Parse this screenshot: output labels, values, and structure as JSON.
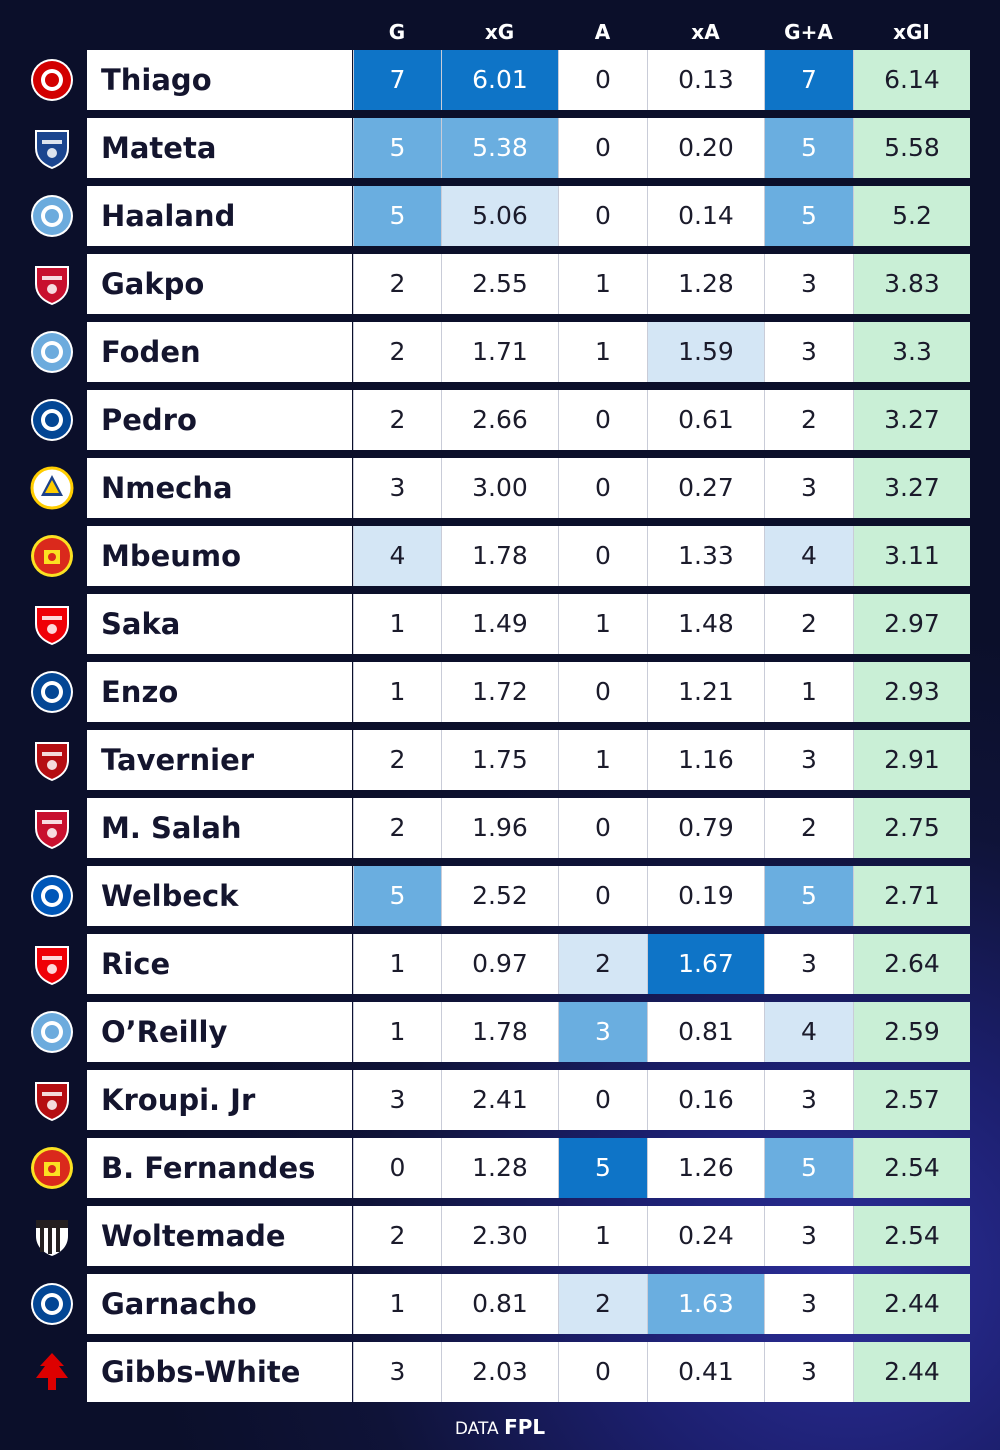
{
  "header": {
    "g": "G",
    "xg": "xG",
    "a": "A",
    "xa": "xA",
    "ga": "G+A",
    "xgi": "xGI"
  },
  "players": [
    {
      "name": "Thiago",
      "club": "brentford",
      "g": "7",
      "xg": "6.01",
      "a": "0",
      "xa": "0.13",
      "ga": "7",
      "xgi": "6.14",
      "lv": {
        "g": 3,
        "xg": 3,
        "a": 0,
        "xa": 0,
        "ga": 3
      }
    },
    {
      "name": "Mateta",
      "club": "crystal-palace",
      "g": "5",
      "xg": "5.38",
      "a": "0",
      "xa": "0.20",
      "ga": "5",
      "xgi": "5.58",
      "lv": {
        "g": 2,
        "xg": 2,
        "a": 0,
        "xa": 0,
        "ga": 2
      }
    },
    {
      "name": "Haaland",
      "club": "manchester-city",
      "g": "5",
      "xg": "5.06",
      "a": "0",
      "xa": "0.14",
      "ga": "5",
      "xgi": "5.2",
      "lv": {
        "g": 2,
        "xg": 1,
        "a": 0,
        "xa": 0,
        "ga": 2
      }
    },
    {
      "name": "Gakpo",
      "club": "liverpool",
      "g": "2",
      "xg": "2.55",
      "a": "1",
      "xa": "1.28",
      "ga": "3",
      "xgi": "3.83",
      "lv": {
        "g": 0,
        "xg": 0,
        "a": 0,
        "xa": 0,
        "ga": 0
      }
    },
    {
      "name": "Foden",
      "club": "manchester-city",
      "g": "2",
      "xg": "1.71",
      "a": "1",
      "xa": "1.59",
      "ga": "3",
      "xgi": "3.3",
      "lv": {
        "g": 0,
        "xg": 0,
        "a": 0,
        "xa": 1,
        "ga": 0
      }
    },
    {
      "name": "Pedro",
      "club": "chelsea",
      "g": "2",
      "xg": "2.66",
      "a": "0",
      "xa": "0.61",
      "ga": "2",
      "xgi": "3.27",
      "lv": {
        "g": 0,
        "xg": 0,
        "a": 0,
        "xa": 0,
        "ga": 0
      }
    },
    {
      "name": "Nmecha",
      "club": "leeds",
      "g": "3",
      "xg": "3.00",
      "a": "0",
      "xa": "0.27",
      "ga": "3",
      "xgi": "3.27",
      "lv": {
        "g": 0,
        "xg": 0,
        "a": 0,
        "xa": 0,
        "ga": 0
      }
    },
    {
      "name": "Mbeumo",
      "club": "manchester-united",
      "g": "4",
      "xg": "1.78",
      "a": "0",
      "xa": "1.33",
      "ga": "4",
      "xgi": "3.11",
      "lv": {
        "g": 1,
        "xg": 0,
        "a": 0,
        "xa": 0,
        "ga": 1
      }
    },
    {
      "name": "Saka",
      "club": "arsenal",
      "g": "1",
      "xg": "1.49",
      "a": "1",
      "xa": "1.48",
      "ga": "2",
      "xgi": "2.97",
      "lv": {
        "g": 0,
        "xg": 0,
        "a": 0,
        "xa": 0,
        "ga": 0
      }
    },
    {
      "name": "Enzo",
      "club": "chelsea",
      "g": "1",
      "xg": "1.72",
      "a": "0",
      "xa": "1.21",
      "ga": "1",
      "xgi": "2.93",
      "lv": {
        "g": 0,
        "xg": 0,
        "a": 0,
        "xa": 0,
        "ga": 0
      }
    },
    {
      "name": "Tavernier",
      "club": "bournemouth",
      "g": "2",
      "xg": "1.75",
      "a": "1",
      "xa": "1.16",
      "ga": "3",
      "xgi": "2.91",
      "lv": {
        "g": 0,
        "xg": 0,
        "a": 0,
        "xa": 0,
        "ga": 0
      }
    },
    {
      "name": "M. Salah",
      "club": "liverpool",
      "g": "2",
      "xg": "1.96",
      "a": "0",
      "xa": "0.79",
      "ga": "2",
      "xgi": "2.75",
      "lv": {
        "g": 0,
        "xg": 0,
        "a": 0,
        "xa": 0,
        "ga": 0
      }
    },
    {
      "name": "Welbeck",
      "club": "brighton",
      "g": "5",
      "xg": "2.52",
      "a": "0",
      "xa": "0.19",
      "ga": "5",
      "xgi": "2.71",
      "lv": {
        "g": 2,
        "xg": 0,
        "a": 0,
        "xa": 0,
        "ga": 2
      }
    },
    {
      "name": "Rice",
      "club": "arsenal",
      "g": "1",
      "xg": "0.97",
      "a": "2",
      "xa": "1.67",
      "ga": "3",
      "xgi": "2.64",
      "lv": {
        "g": 0,
        "xg": 0,
        "a": 1,
        "xa": 3,
        "ga": 0
      }
    },
    {
      "name": "O’Reilly",
      "club": "manchester-city",
      "g": "1",
      "xg": "1.78",
      "a": "3",
      "xa": "0.81",
      "ga": "4",
      "xgi": "2.59",
      "lv": {
        "g": 0,
        "xg": 0,
        "a": 2,
        "xa": 0,
        "ga": 1
      }
    },
    {
      "name": "Kroupi. Jr",
      "club": "bournemouth",
      "g": "3",
      "xg": "2.41",
      "a": "0",
      "xa": "0.16",
      "ga": "3",
      "xgi": "2.57",
      "lv": {
        "g": 0,
        "xg": 0,
        "a": 0,
        "xa": 0,
        "ga": 0
      }
    },
    {
      "name": "B. Fernandes",
      "club": "manchester-united",
      "g": "0",
      "xg": "1.28",
      "a": "5",
      "xa": "1.26",
      "ga": "5",
      "xgi": "2.54",
      "lv": {
        "g": 0,
        "xg": 0,
        "a": 3,
        "xa": 0,
        "ga": 2
      }
    },
    {
      "name": "Woltemade",
      "club": "newcastle",
      "g": "2",
      "xg": "2.30",
      "a": "1",
      "xa": "0.24",
      "ga": "3",
      "xgi": "2.54",
      "lv": {
        "g": 0,
        "xg": 0,
        "a": 0,
        "xa": 0,
        "ga": 0
      }
    },
    {
      "name": "Garnacho",
      "club": "chelsea",
      "g": "1",
      "xg": "0.81",
      "a": "2",
      "xa": "1.63",
      "ga": "3",
      "xgi": "2.44",
      "lv": {
        "g": 0,
        "xg": 0,
        "a": 1,
        "xa": 2,
        "ga": 0
      }
    },
    {
      "name": "Gibbs-White",
      "club": "nottingham-forest",
      "g": "3",
      "xg": "2.03",
      "a": "0",
      "xa": "0.41",
      "ga": "3",
      "xgi": "2.44",
      "lv": {
        "g": 0,
        "xg": 0,
        "a": 0,
        "xa": 0,
        "ga": 0
      }
    }
  ],
  "club_colors": {
    "brentford": "#d20000",
    "crystal-palace": "#1b458f",
    "manchester-city": "#6cabdd",
    "liverpool": "#c8102e",
    "chelsea": "#034694",
    "leeds": "#ffcd00",
    "manchester-united": "#da291c",
    "arsenal": "#ef0107",
    "bournemouth": "#b50e12",
    "brighton": "#0057b8",
    "newcastle": "#241f20",
    "nottingham-forest": "#dd0000"
  },
  "footer": {
    "prefix": "DATA",
    "brand": "FPL"
  }
}
